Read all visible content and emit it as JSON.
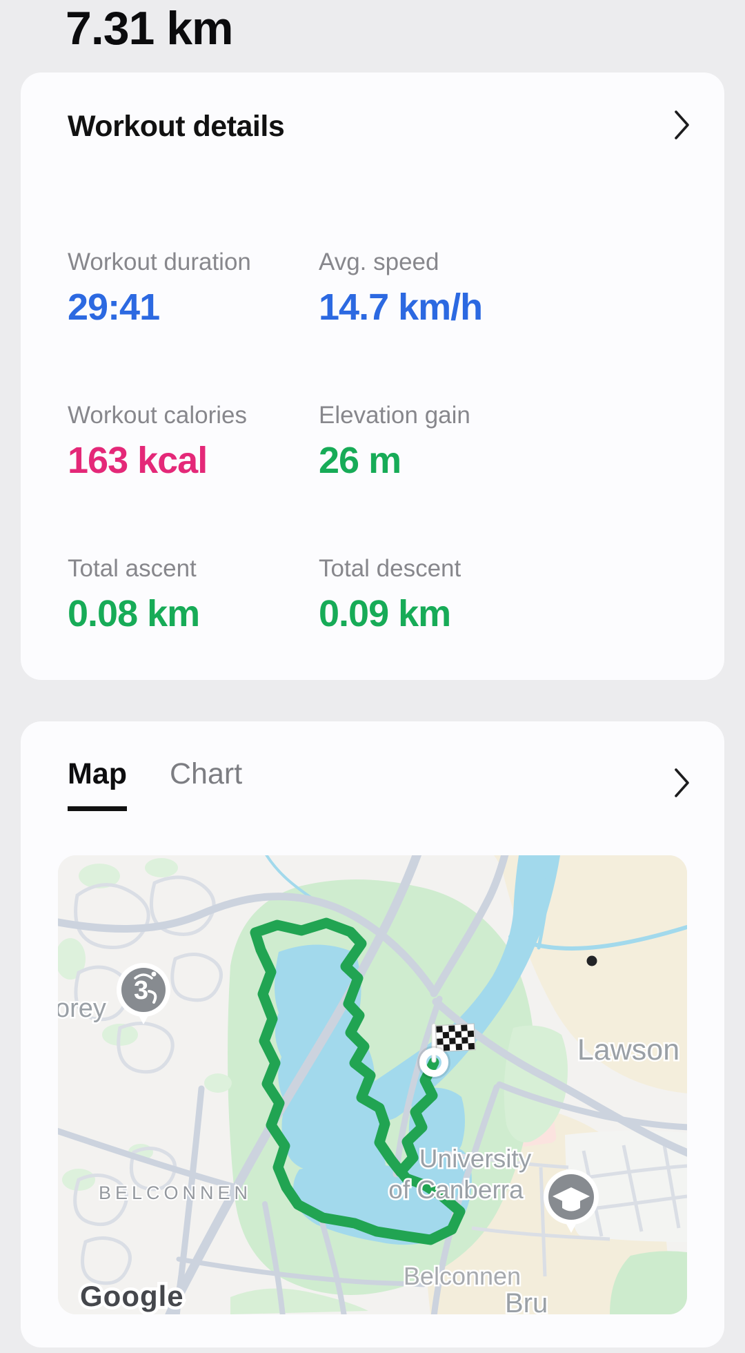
{
  "page": {
    "distance_title": "7.31 km"
  },
  "workout_card": {
    "title": "Workout details",
    "stats": [
      {
        "label": "Workout duration",
        "value": "29:41",
        "color": "blue"
      },
      {
        "label": "Avg. speed",
        "value": "14.7 km/h",
        "color": "blue"
      },
      {
        "label": "Workout calories",
        "value": "163 kcal",
        "color": "pink"
      },
      {
        "label": "Elevation gain",
        "value": "26 m",
        "color": "green"
      },
      {
        "label": "Total ascent",
        "value": "0.08 km",
        "color": "green"
      },
      {
        "label": "Total descent",
        "value": "0.09 km",
        "color": "green"
      }
    ]
  },
  "map_card": {
    "tabs": [
      {
        "label": "Map",
        "active": true
      },
      {
        "label": "Chart",
        "active": false
      }
    ],
    "map_labels": {
      "florey_partial": "orey",
      "lawson": "Lawson",
      "belconnen_district": "BELCONNEN",
      "university_line1": "University",
      "university_line2": "of Canberra",
      "belconnen_town": "Belconnen",
      "bruce_partial": "Bru",
      "google_attribution": "Google"
    }
  },
  "colors": {
    "metric_blue": "#2c69e1",
    "metric_pink": "#e42878",
    "metric_green": "#17ab57",
    "route_green": "#21a452",
    "lake_blue": "#a2d9ec",
    "map_label_gray": "#9aa0a6"
  }
}
